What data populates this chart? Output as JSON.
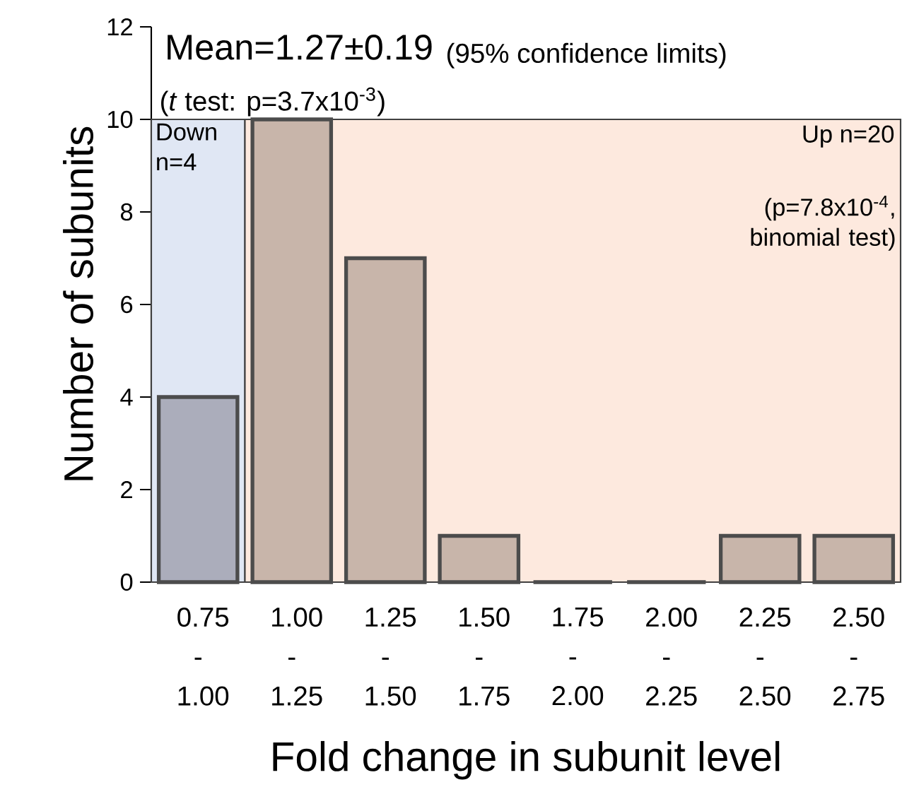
{
  "chart_data": {
    "type": "bar",
    "xlabel": "Fold change in subunit level",
    "ylabel": "Number of subunits",
    "categories": [
      "0.75 - 1.00",
      "1.00 - 1.25",
      "1.25 - 1.50",
      "1.50 - 1.75",
      "1.75 - 2.00",
      "2.00 - 2.25",
      "2.25 - 2.50",
      "2.50 - 2.75"
    ],
    "values": [
      4,
      10,
      7,
      1,
      0,
      0,
      1,
      1
    ],
    "colors": [
      "#abadbb",
      "#c8b5aa",
      "#c8b5aa",
      "#c8b5aa",
      "#c8b5aa",
      "#c8b5aa",
      "#c8b5aa",
      "#c8b5aa"
    ],
    "ylim": [
      0,
      12
    ],
    "yticks": [
      0,
      2,
      4,
      6,
      8,
      10,
      12
    ],
    "bands": [
      {
        "axis": "x",
        "from": "0.75 - 1.00",
        "to": "0.75 - 1.00",
        "label": "Down n=4",
        "color": "#e0e7f4"
      },
      {
        "axis": "x",
        "from": "1.00 - 1.25",
        "to": "2.50 - 2.75",
        "label": "Up n=20",
        "color": "#fde9de"
      }
    ],
    "annotations": [
      "Mean=1.27±0.19",
      "(95% confidence limits)",
      "(*t* test: p=3.7x10$^{-3}$)",
      "(p=7.8x10$^{-4}$, binomial test)"
    ],
    "grid": false
  }
}
